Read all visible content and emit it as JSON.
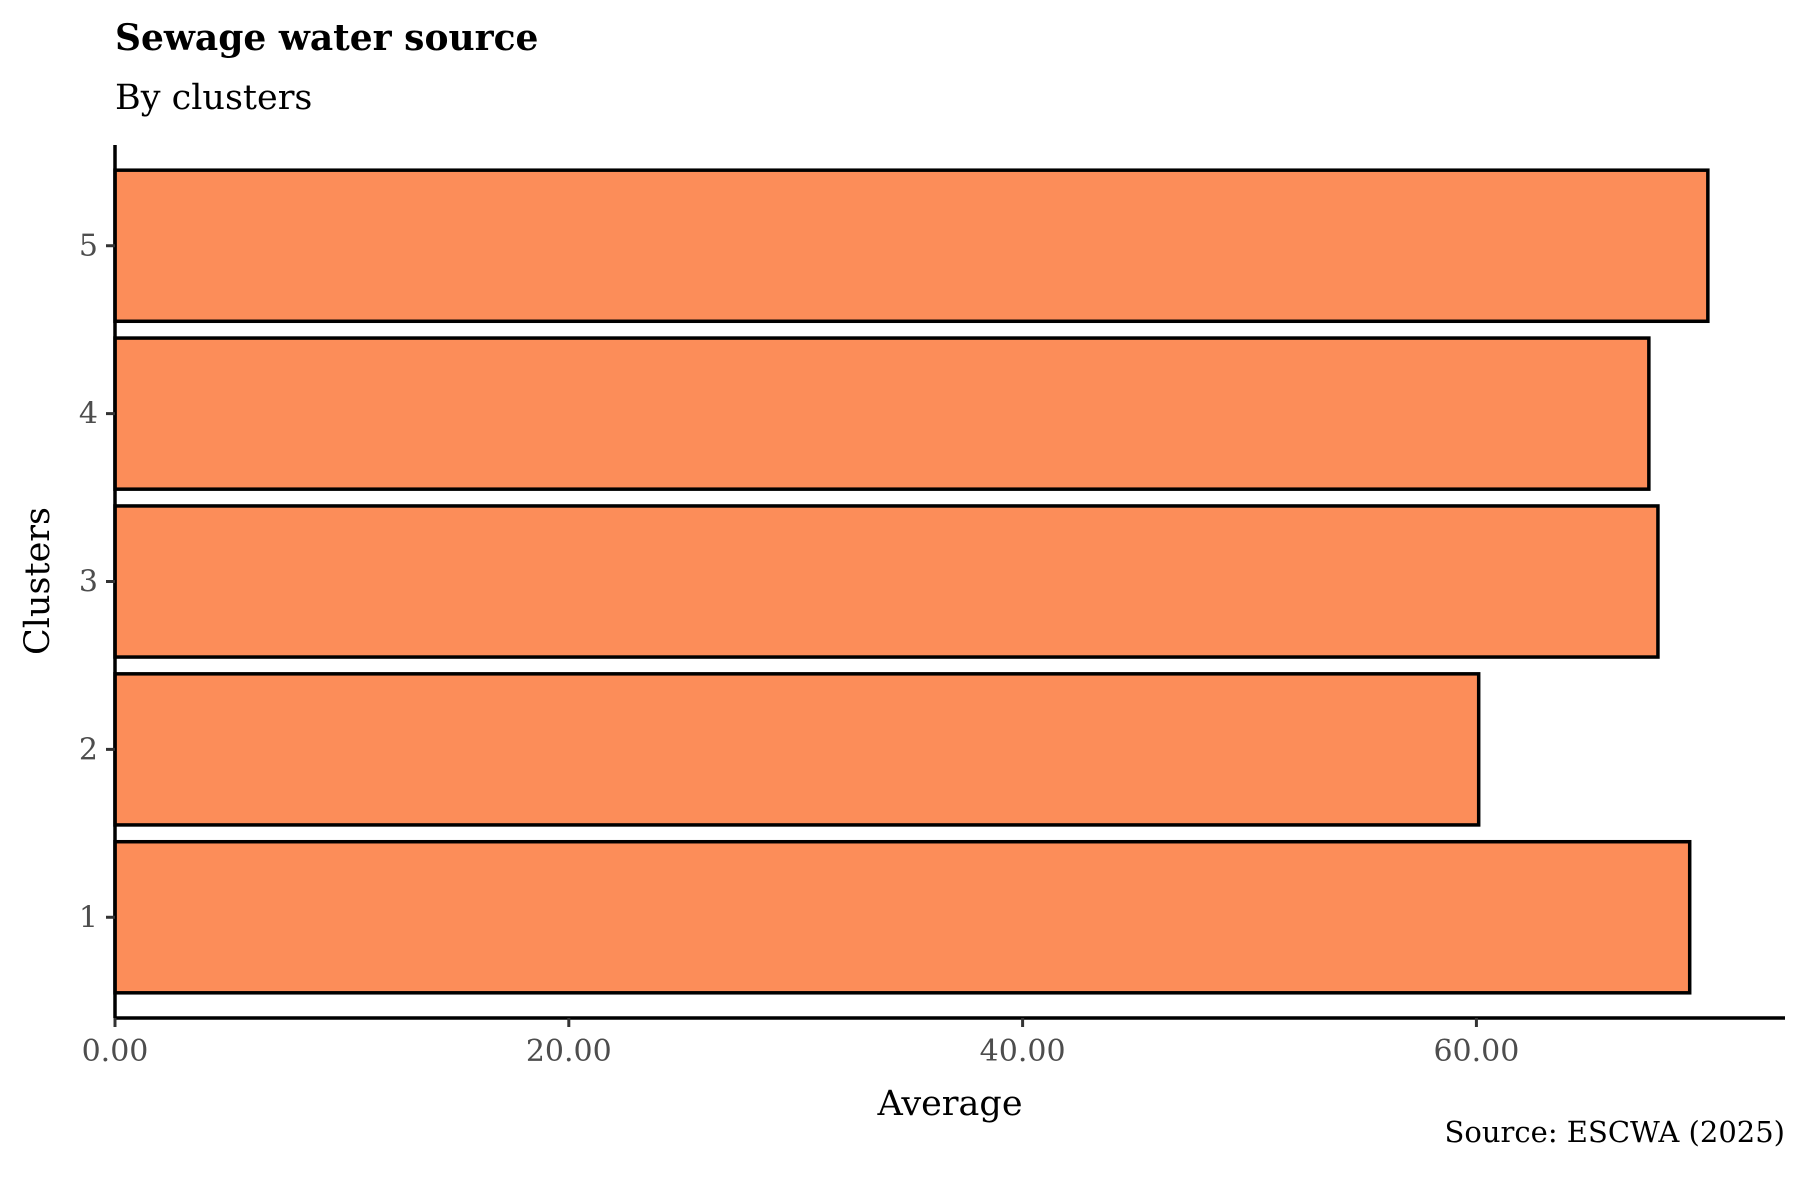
{
  "chart_data": {
    "type": "bar",
    "orientation": "horizontal",
    "title": "Sewage water source",
    "subtitle": "By clusters",
    "xlabel": "Average",
    "ylabel": "Clusters",
    "caption": "Source: ESCWA (2025)",
    "categories": [
      "1",
      "2",
      "3",
      "4",
      "5"
    ],
    "values": [
      69.4,
      60.1,
      68.0,
      67.6,
      70.2
    ],
    "xlim": [
      0,
      73.6
    ],
    "xticks": [
      0,
      20,
      40,
      60
    ],
    "xtick_labels": [
      "0.00",
      "20.00",
      "40.00",
      "60.00"
    ],
    "bar_color": "#FC8D59",
    "bar_outline": "#000000",
    "grid": false,
    "legend": "none"
  }
}
